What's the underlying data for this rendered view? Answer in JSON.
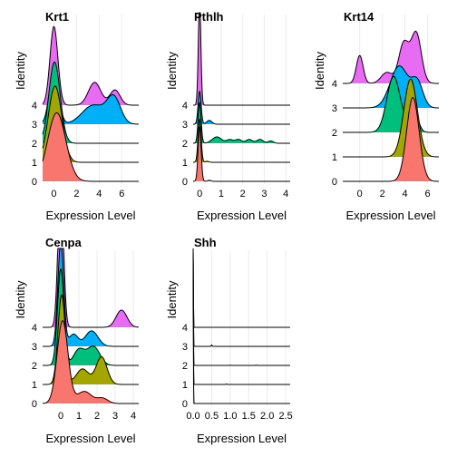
{
  "chart_data": [
    {
      "type": "ridgeline",
      "title": "Krt1",
      "xlabel": "Expression Level",
      "ylabel": "Identity",
      "xlim": [
        -1,
        7.5
      ],
      "xticks": [
        0,
        2,
        4,
        6
      ],
      "xtick_labels": [
        "0",
        "2",
        "4",
        "6"
      ],
      "identities": [
        "0",
        "1",
        "2",
        "3",
        "4"
      ],
      "colors": [
        "#F8766D",
        "#A3A500",
        "#00BF7D",
        "#00B0F6",
        "#E76BF3"
      ],
      "series": [
        {
          "name": "0",
          "peaks": [
            {
              "mu": 0.25,
              "sd": 0.8,
              "h": 2.7
            }
          ],
          "tail": 0.0
        },
        {
          "name": "1",
          "peaks": [
            {
              "mu": 0.1,
              "sd": 0.6,
              "h": 3.0
            }
          ],
          "tail": 0.0
        },
        {
          "name": "2",
          "peaks": [
            {
              "mu": 0.05,
              "sd": 0.5,
              "h": 3.2
            }
          ],
          "tail": 0.0
        },
        {
          "name": "3",
          "peaks": [
            {
              "mu": 0.0,
              "sd": 0.4,
              "h": 2.2
            },
            {
              "mu": 3.5,
              "sd": 1.0,
              "h": 0.75
            },
            {
              "mu": 5.3,
              "sd": 0.6,
              "h": 1.0
            }
          ],
          "tail": 0.0
        },
        {
          "name": "4",
          "peaks": [
            {
              "mu": 0.0,
              "sd": 0.35,
              "h": 3.1
            },
            {
              "mu": 3.6,
              "sd": 0.55,
              "h": 0.9
            },
            {
              "mu": 5.4,
              "sd": 0.45,
              "h": 0.6
            }
          ],
          "tail": 0.0
        }
      ]
    },
    {
      "type": "ridgeline",
      "title": "Pthlh",
      "xlabel": "Expression Level",
      "ylabel": "Identity",
      "xlim": [
        -0.3,
        4.2
      ],
      "xticks": [
        0,
        1,
        2,
        3,
        4
      ],
      "xtick_labels": [
        "0",
        "1",
        "2",
        "3",
        "4"
      ],
      "identities": [
        "0",
        "1",
        "2",
        "3",
        "4"
      ],
      "colors": [
        "#F8766D",
        "#A3A500",
        "#00BF7D",
        "#00B0F6",
        "#E76BF3"
      ],
      "series": [
        {
          "name": "0",
          "peaks": [
            {
              "mu": 0.0,
              "sd": 0.07,
              "h": 4.3
            },
            {
              "mu": 0.45,
              "sd": 0.08,
              "h": 0.08
            }
          ],
          "tail": 0.0
        },
        {
          "name": "1",
          "peaks": [
            {
              "mu": 0.0,
              "sd": 0.07,
              "h": 3.4
            },
            {
              "mu": 0.35,
              "sd": 0.08,
              "h": 0.08
            }
          ],
          "tail": 0.0
        },
        {
          "name": "2",
          "peaks": [
            {
              "mu": 0.0,
              "sd": 0.07,
              "h": 3.2
            },
            {
              "mu": 0.8,
              "sd": 0.22,
              "h": 0.5
            },
            {
              "mu": 1.4,
              "sd": 0.15,
              "h": 0.28
            },
            {
              "mu": 1.8,
              "sd": 0.15,
              "h": 0.3
            },
            {
              "mu": 2.3,
              "sd": 0.15,
              "h": 0.3
            },
            {
              "mu": 2.8,
              "sd": 0.15,
              "h": 0.3
            },
            {
              "mu": 3.3,
              "sd": 0.12,
              "h": 0.18
            }
          ],
          "tail": 0.0
        },
        {
          "name": "3",
          "peaks": [
            {
              "mu": 0.0,
              "sd": 0.07,
              "h": 2.6
            },
            {
              "mu": 0.45,
              "sd": 0.12,
              "h": 0.3
            }
          ],
          "tail": 0.0
        },
        {
          "name": "4",
          "peaks": [
            {
              "mu": 0.0,
              "sd": 0.06,
              "h": 8.2
            }
          ],
          "tail": 0.0
        }
      ]
    },
    {
      "type": "ridgeline",
      "title": "Krt14",
      "xlabel": "Expression Level",
      "ylabel": "Identity",
      "xlim": [
        -1.5,
        7.0
      ],
      "xticks": [
        0,
        2,
        4,
        6
      ],
      "xtick_labels": [
        "0",
        "2",
        "4",
        "6"
      ],
      "identities": [
        "0",
        "1",
        "2",
        "3",
        "4"
      ],
      "colors": [
        "#F8766D",
        "#A3A500",
        "#00BF7D",
        "#00B0F6",
        "#E76BF3"
      ],
      "series": [
        {
          "name": "0",
          "peaks": [
            {
              "mu": 4.7,
              "sd": 0.55,
              "h": 4.2
            }
          ],
          "tail": 0.0
        },
        {
          "name": "1",
          "peaks": [
            {
              "mu": 4.5,
              "sd": 0.6,
              "h": 3.9
            }
          ],
          "tail": 0.0
        },
        {
          "name": "2",
          "peaks": [
            {
              "mu": 3.0,
              "sd": 0.6,
              "h": 2.8
            },
            {
              "mu": 4.7,
              "sd": 0.4,
              "h": 1.3
            }
          ],
          "tail": 0.0
        },
        {
          "name": "3",
          "peaks": [
            {
              "mu": 3.5,
              "sd": 0.8,
              "h": 2.1
            },
            {
              "mu": 5.1,
              "sd": 0.5,
              "h": 1.2
            }
          ],
          "tail": 0.0
        },
        {
          "name": "4",
          "peaks": [
            {
              "mu": 0.0,
              "sd": 0.3,
              "h": 1.4
            },
            {
              "mu": 2.4,
              "sd": 0.5,
              "h": 0.55
            },
            {
              "mu": 3.9,
              "sd": 0.45,
              "h": 2.0
            },
            {
              "mu": 5.0,
              "sd": 0.45,
              "h": 2.5
            }
          ],
          "tail": 0.0
        }
      ]
    },
    {
      "type": "ridgeline",
      "title": "Cenpa",
      "xlabel": "Expression Level",
      "ylabel": "Identity",
      "xlim": [
        -1.0,
        4.3
      ],
      "xticks": [
        0,
        1,
        2,
        3,
        4
      ],
      "xtick_labels": [
        "0",
        "1",
        "2",
        "3",
        "4"
      ],
      "identities": [
        "0",
        "1",
        "2",
        "3",
        "4"
      ],
      "colors": [
        "#F8766D",
        "#A3A500",
        "#00BF7D",
        "#00B0F6",
        "#E76BF3"
      ],
      "series": [
        {
          "name": "0",
          "peaks": [
            {
              "mu": 0.1,
              "sd": 0.3,
              "h": 2.4
            },
            {
              "mu": 1.3,
              "sd": 0.4,
              "h": 0.35
            },
            {
              "mu": 2.3,
              "sd": 0.3,
              "h": 0.15
            }
          ],
          "tail": 0.0
        },
        {
          "name": "1",
          "peaks": [
            {
              "mu": 0.05,
              "sd": 0.2,
              "h": 2.6
            },
            {
              "mu": 1.2,
              "sd": 0.35,
              "h": 0.45
            },
            {
              "mu": 2.25,
              "sd": 0.3,
              "h": 0.8
            }
          ],
          "tail": 0.0
        },
        {
          "name": "2",
          "peaks": [
            {
              "mu": 0.0,
              "sd": 0.18,
              "h": 2.8
            },
            {
              "mu": 1.0,
              "sd": 0.3,
              "h": 0.45
            },
            {
              "mu": 1.8,
              "sd": 0.35,
              "h": 0.55
            }
          ],
          "tail": 0.0
        },
        {
          "name": "3",
          "peaks": [
            {
              "mu": 0.0,
              "sd": 0.16,
              "h": 3.0
            },
            {
              "mu": 0.7,
              "sd": 0.25,
              "h": 0.35
            },
            {
              "mu": 1.7,
              "sd": 0.35,
              "h": 0.45
            }
          ],
          "tail": 0.0
        },
        {
          "name": "4",
          "peaks": [
            {
              "mu": 0.0,
              "sd": 0.15,
              "h": 4.3
            },
            {
              "mu": 3.35,
              "sd": 0.3,
              "h": 0.5
            }
          ],
          "tail": 0.0
        }
      ]
    },
    {
      "type": "ridgeline",
      "title": "Shh",
      "xlabel": "Expression Level",
      "ylabel": "Identity",
      "xlim": [
        0.0,
        2.62
      ],
      "xticks": [
        0.0,
        0.5,
        1.0,
        1.5,
        2.0,
        2.5
      ],
      "xtick_labels": [
        "0.0",
        "0.5",
        "1.0",
        "1.5",
        "2.0",
        "2.5"
      ],
      "identities": [
        "0",
        "1",
        "2",
        "3",
        "4"
      ],
      "colors": [
        "#F8766D",
        "#A3A500",
        "#00BF7D",
        "#00B0F6",
        "#E76BF3"
      ],
      "series": [
        {
          "name": "0",
          "peaks": [
            {
              "mu": 0.0,
              "sd": 0.006,
              "h": 30.0
            }
          ],
          "tail": 0.0
        },
        {
          "name": "1",
          "peaks": [
            {
              "mu": 0.0,
              "sd": 0.006,
              "h": 30.0
            },
            {
              "mu": 0.9,
              "sd": 0.01,
              "h": 0.12
            }
          ],
          "tail": 0.0
        },
        {
          "name": "2",
          "peaks": [
            {
              "mu": 0.0,
              "sd": 0.006,
              "h": 30.0
            },
            {
              "mu": 1.0,
              "sd": 0.01,
              "h": 0.08
            },
            {
              "mu": 1.7,
              "sd": 0.01,
              "h": 0.08
            }
          ],
          "tail": 0.0
        },
        {
          "name": "3",
          "peaks": [
            {
              "mu": 0.0,
              "sd": 0.006,
              "h": 30.0
            },
            {
              "mu": 0.5,
              "sd": 0.012,
              "h": 0.3
            }
          ],
          "tail": 0.0
        },
        {
          "name": "4",
          "peaks": [
            {
              "mu": 0.0,
              "sd": 0.006,
              "h": 30.0
            }
          ],
          "tail": 0.0
        }
      ]
    }
  ]
}
